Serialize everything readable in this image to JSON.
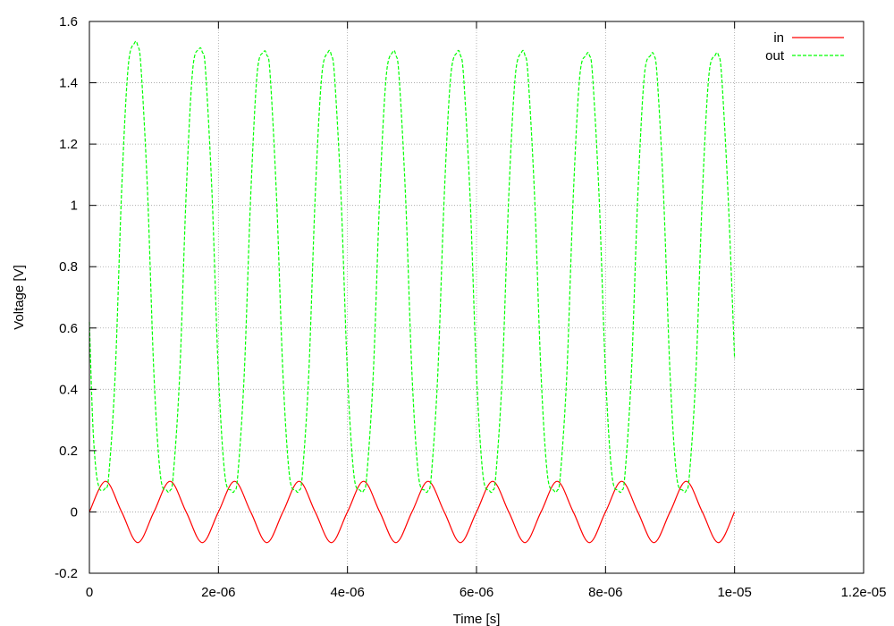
{
  "chart_data": {
    "type": "line",
    "title": "",
    "xlabel": "Time [s]",
    "ylabel": "Voltage [V]",
    "xlim": [
      0,
      1.2e-05
    ],
    "ylim": [
      -0.2,
      1.6
    ],
    "xticks": [
      0,
      2e-06,
      4e-06,
      6e-06,
      8e-06,
      1e-05,
      1.2e-05
    ],
    "xtick_labels": [
      "0",
      "2e-06",
      "4e-06",
      "6e-06",
      "8e-06",
      "1e-05",
      "1.2e-05"
    ],
    "yticks": [
      -0.2,
      0,
      0.2,
      0.4,
      0.6,
      0.8,
      1,
      1.2,
      1.4,
      1.6
    ],
    "ytick_labels": [
      "-0.2",
      "0",
      "0.2",
      "0.4",
      "0.6",
      "0.8",
      "1",
      "1.2",
      "1.4",
      "1.6"
    ],
    "grid": true,
    "legend_position": "top-right",
    "series": [
      {
        "name": "in",
        "color": "#ff0000",
        "line_style": "solid",
        "x": [
          0,
          2.5e-07,
          5e-07,
          7.5e-07,
          1e-06,
          1.25e-06,
          1.5e-06,
          1.75e-06,
          2e-06,
          2.25e-06,
          2.5e-06,
          2.75e-06,
          3e-06,
          3.25e-06,
          3.5e-06,
          3.75e-06,
          4e-06,
          4.25e-06,
          4.5e-06,
          4.75e-06,
          5e-06,
          5.25e-06,
          5.5e-06,
          5.75e-06,
          6e-06,
          6.25e-06,
          6.5e-06,
          6.75e-06,
          7e-06,
          7.25e-06,
          7.5e-06,
          7.75e-06,
          8e-06,
          8.25e-06,
          8.5e-06,
          8.75e-06,
          9e-06,
          9.25e-06,
          9.5e-06,
          9.75e-06,
          1e-05
        ],
        "y": [
          0,
          0.1,
          0,
          -0.1,
          0,
          0.1,
          0,
          -0.1,
          0,
          0.1,
          0,
          -0.1,
          0,
          0.1,
          0,
          -0.1,
          0,
          0.1,
          0,
          -0.1,
          0,
          0.1,
          0,
          -0.1,
          0,
          0.1,
          0,
          -0.1,
          0,
          0.1,
          0,
          -0.1,
          0,
          0.1,
          0,
          -0.1,
          0,
          0.1,
          0,
          -0.1,
          0
        ]
      },
      {
        "name": "out",
        "color": "#00ff00",
        "line_style": "dashed",
        "x": [
          0,
          5e-08,
          1e-07,
          1.5e-07,
          2e-07,
          2.5e-07,
          3e-07,
          4e-07,
          5e-07,
          6e-07,
          7e-07,
          7.5e-07,
          8e-07,
          9e-07,
          1e-06,
          1.1e-06,
          1.2e-06,
          1.25e-06,
          1.3e-06,
          1.4e-06,
          1.5e-06,
          1.6e-06,
          1.7e-06,
          1.75e-06,
          1.8e-06,
          1.9e-06,
          2e-06,
          2.1e-06,
          2.2e-06,
          2.25e-06,
          2.3e-06,
          2.4e-06,
          2.5e-06,
          2.6e-06,
          2.7e-06,
          2.75e-06,
          2.8e-06,
          2.9e-06,
          3e-06,
          3.1e-06,
          3.2e-06,
          3.25e-06,
          3.3e-06,
          3.4e-06,
          3.5e-06,
          3.6e-06,
          3.7e-06,
          3.75e-06,
          3.8e-06,
          3.9e-06,
          4e-06,
          4.1e-06,
          4.2e-06,
          4.25e-06,
          4.3e-06,
          4.4e-06,
          4.5e-06,
          4.6e-06,
          4.7e-06,
          4.75e-06,
          4.8e-06,
          4.9e-06,
          5e-06,
          5.1e-06,
          5.2e-06,
          5.25e-06,
          5.3e-06,
          5.4e-06,
          5.5e-06,
          5.6e-06,
          5.7e-06,
          5.75e-06,
          5.8e-06,
          5.9e-06,
          6e-06,
          6.1e-06,
          6.2e-06,
          6.25e-06,
          6.3e-06,
          6.4e-06,
          6.5e-06,
          6.6e-06,
          6.7e-06,
          6.75e-06,
          6.8e-06,
          6.9e-06,
          7e-06,
          7.1e-06,
          7.2e-06,
          7.25e-06,
          7.3e-06,
          7.4e-06,
          7.5e-06,
          7.6e-06,
          7.7e-06,
          7.75e-06,
          7.8e-06,
          7.9e-06,
          8e-06,
          8.1e-06,
          8.2e-06,
          8.25e-06,
          8.3e-06,
          8.4e-06,
          8.5e-06,
          8.6e-06,
          8.7e-06,
          8.75e-06,
          8.8e-06,
          8.9e-06,
          9e-06,
          9.1e-06,
          9.2e-06,
          9.25e-06,
          9.3e-06,
          9.4e-06,
          9.5e-06,
          9.6e-06,
          9.7e-06,
          9.75e-06,
          9.8e-06,
          9.9e-06,
          1e-05
        ],
        "y": [
          0.62,
          0.3,
          0.14,
          0.08,
          0.07,
          0.08,
          0.12,
          0.45,
          1.05,
          1.45,
          1.53,
          1.52,
          1.45,
          1.05,
          0.45,
          0.12,
          0.07,
          0.07,
          0.12,
          0.45,
          1.04,
          1.44,
          1.51,
          1.5,
          1.44,
          1.04,
          0.45,
          0.12,
          0.07,
          0.07,
          0.12,
          0.45,
          1.03,
          1.43,
          1.5,
          1.49,
          1.43,
          1.03,
          0.45,
          0.12,
          0.07,
          0.07,
          0.12,
          0.45,
          1.03,
          1.42,
          1.5,
          1.49,
          1.42,
          1.03,
          0.45,
          0.12,
          0.07,
          0.07,
          0.12,
          0.45,
          1.03,
          1.42,
          1.5,
          1.49,
          1.42,
          1.03,
          0.45,
          0.12,
          0.07,
          0.07,
          0.12,
          0.45,
          1.03,
          1.42,
          1.5,
          1.49,
          1.42,
          1.03,
          0.45,
          0.12,
          0.07,
          0.07,
          0.12,
          0.45,
          1.03,
          1.42,
          1.5,
          1.49,
          1.42,
          1.03,
          0.45,
          0.12,
          0.07,
          0.07,
          0.12,
          0.45,
          1.03,
          1.42,
          1.49,
          1.49,
          1.42,
          1.03,
          0.45,
          0.12,
          0.07,
          0.07,
          0.12,
          0.45,
          1.03,
          1.42,
          1.49,
          1.49,
          1.42,
          1.03,
          0.45,
          0.12,
          0.07,
          0.07,
          0.12,
          0.45,
          1.03,
          1.42,
          1.49,
          1.49,
          1.42,
          1.03,
          0.5
        ]
      }
    ]
  }
}
